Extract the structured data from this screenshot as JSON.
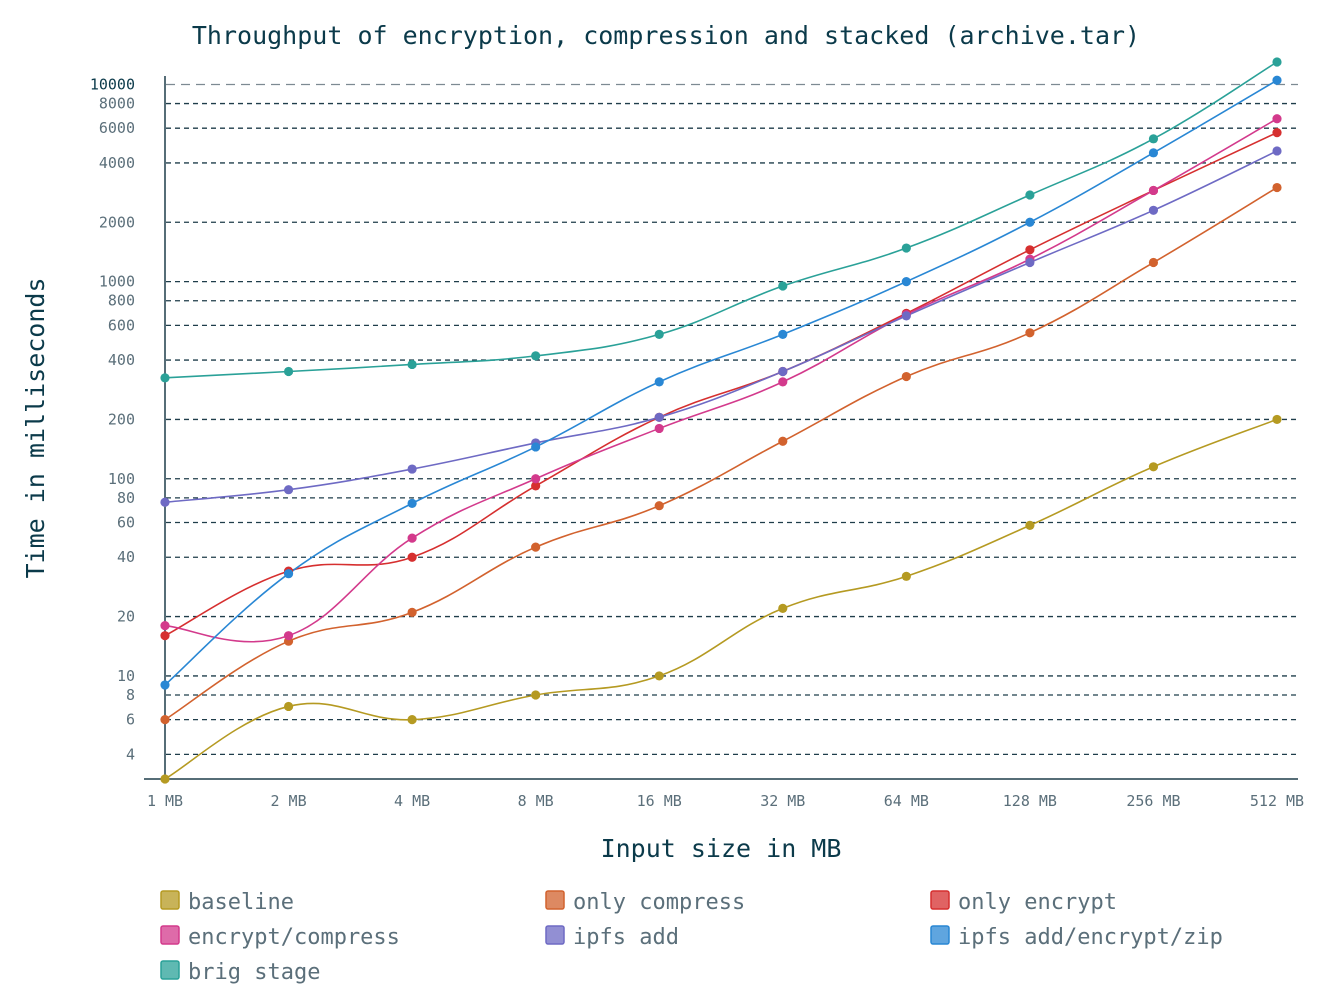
{
  "chart_data": {
    "type": "line",
    "title": "Throughput of encryption, compression and stacked (archive.tar)",
    "xlabel": "Input size in MB",
    "ylabel": "Time in milliseconds",
    "y_scale": "log",
    "ylim": [
      3,
      13000
    ],
    "grid": true,
    "legend_position": "bottom",
    "categories": [
      "1 MB",
      "2 MB",
      "4 MB",
      "8 MB",
      "16 MB",
      "32 MB",
      "64 MB",
      "128 MB",
      "256 MB",
      "512 MB"
    ],
    "y_ticks": [
      {
        "value": 4,
        "label": "4"
      },
      {
        "value": 6,
        "label": "6"
      },
      {
        "value": 8,
        "label": "8"
      },
      {
        "value": 10,
        "label": "10"
      },
      {
        "value": 20,
        "label": "20"
      },
      {
        "value": 40,
        "label": "40"
      },
      {
        "value": 60,
        "label": "60"
      },
      {
        "value": 80,
        "label": "80"
      },
      {
        "value": 100,
        "label": "100"
      },
      {
        "value": 200,
        "label": "200"
      },
      {
        "value": 400,
        "label": "400"
      },
      {
        "value": 600,
        "label": "600"
      },
      {
        "value": 800,
        "label": "800"
      },
      {
        "value": 1000,
        "label": "1000"
      },
      {
        "value": 2000,
        "label": "2000"
      },
      {
        "value": 4000,
        "label": "4000"
      },
      {
        "value": 6000,
        "label": "6000"
      },
      {
        "value": 8000,
        "label": "8000"
      },
      {
        "value": 10000,
        "label": "10000",
        "major": true
      }
    ],
    "series": [
      {
        "name": "baseline",
        "color": "#b59a22",
        "values": [
          3,
          7,
          6,
          8,
          10,
          22,
          32,
          58,
          115,
          200
        ]
      },
      {
        "name": "only compress",
        "color": "#d2622e",
        "values": [
          6,
          15,
          21,
          45,
          73,
          155,
          330,
          550,
          1250,
          3000
        ]
      },
      {
        "name": "only encrypt",
        "color": "#d62f2f",
        "values": [
          16,
          34,
          40,
          92,
          205,
          350,
          690,
          1450,
          2900,
          5700
        ]
      },
      {
        "name": "encrypt/compress",
        "color": "#d33a8c",
        "values": [
          18,
          16,
          50,
          100,
          180,
          310,
          680,
          1300,
          2900,
          6700
        ]
      },
      {
        "name": "ipfs add",
        "color": "#6e6ac4",
        "values": [
          76,
          88,
          112,
          152,
          205,
          350,
          670,
          1250,
          2300,
          4600
        ]
      },
      {
        "name": "ipfs add/encrypt/zip",
        "color": "#2987d4",
        "values": [
          9,
          33,
          75,
          145,
          310,
          540,
          1000,
          2000,
          4500,
          10500
        ]
      },
      {
        "name": "brig stage",
        "color": "#2aa198",
        "values": [
          325,
          350,
          380,
          420,
          540,
          950,
          1480,
          2750,
          5300,
          13000
        ]
      }
    ]
  }
}
